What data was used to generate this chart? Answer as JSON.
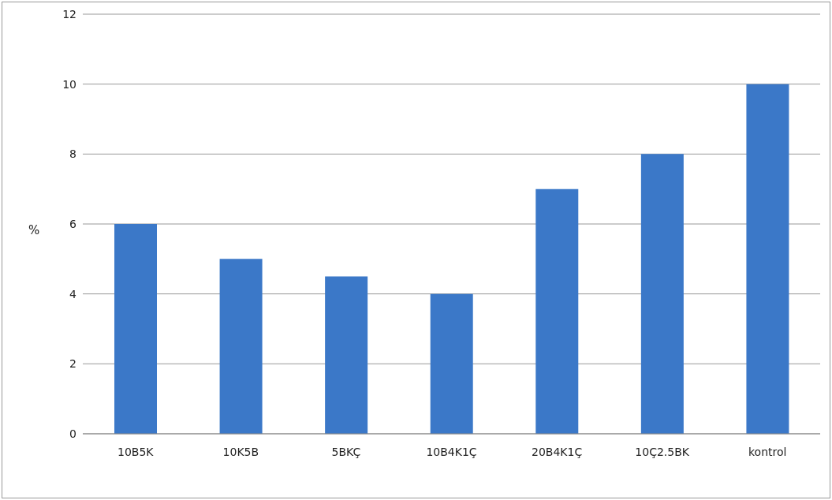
{
  "chart_data": {
    "type": "bar",
    "ylabel": "%",
    "categories": [
      "10B5K",
      "10K5B",
      "5BKÇ",
      "10B4K1Ç",
      "20B4K1Ç",
      "10Ç2.5BK",
      "kontrol"
    ],
    "values": [
      6,
      5,
      4.5,
      4,
      7,
      8,
      10
    ],
    "color": "#3b78c8",
    "ylim": [
      0,
      12
    ],
    "yticks": [
      0,
      2,
      4,
      6,
      8,
      10,
      12
    ],
    "grid": "y"
  }
}
